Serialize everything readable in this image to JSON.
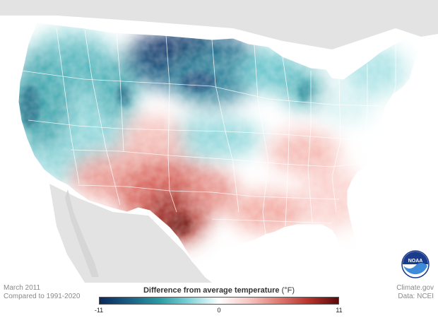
{
  "map": {
    "date_label": "March 2011",
    "baseline_label": "Compared to 1991-2020",
    "credit_site": "Climate.gov",
    "credit_data": "Data: NCEI",
    "logo_text": "NOAA",
    "legend": {
      "title": "Difference from average temperature",
      "unit": "(°F)",
      "min_label": "-11",
      "mid_label": "0",
      "max_label": "11",
      "min_value": -11,
      "max_value": 11,
      "color_stops": [
        "#0b2a5c",
        "#1a5f86",
        "#2a9aa3",
        "#7fd3d8",
        "#ffffff",
        "#f7c6c2",
        "#e07a72",
        "#b8332c",
        "#5a0b0b"
      ]
    },
    "colors": {
      "land_background": "#e3e3e3",
      "state_border": "#ffffff"
    }
  }
}
